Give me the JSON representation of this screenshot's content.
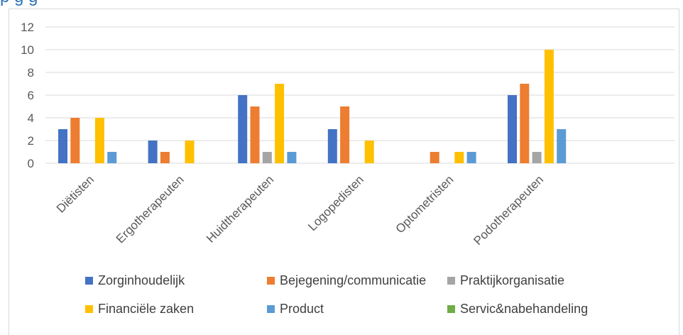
{
  "page_title_fragment": "p            g    g",
  "chart_data": {
    "type": "bar",
    "title": "",
    "xlabel": "",
    "ylabel": "",
    "ylim": [
      0,
      12
    ],
    "yticks": [
      0,
      2,
      4,
      6,
      8,
      10,
      12
    ],
    "grid": true,
    "legend_position": "bottom",
    "categories": [
      "Diëtisten",
      "Ergotherapeuten",
      "Huidtherapeuten",
      "Logopedisten",
      "Optometristen",
      "Podotherapeuten"
    ],
    "series": [
      {
        "name": "Zorginhoudelijk",
        "color": "#4472C4",
        "values": [
          3,
          2,
          6,
          3,
          0,
          6
        ]
      },
      {
        "name": "Bejegening/communicatie",
        "color": "#ED7D31",
        "values": [
          4,
          1,
          5,
          5,
          1,
          7
        ]
      },
      {
        "name": "Praktijkorganisatie",
        "color": "#A5A5A5",
        "values": [
          0,
          0,
          1,
          0,
          0,
          1
        ]
      },
      {
        "name": "Financiële zaken",
        "color": "#FFC000",
        "values": [
          4,
          2,
          7,
          2,
          1,
          10
        ]
      },
      {
        "name": "Product",
        "color": "#5B9BD5",
        "values": [
          1,
          0,
          1,
          0,
          1,
          3
        ]
      },
      {
        "name": "Servic&nabehandeling",
        "color": "#70AD47",
        "values": [
          0,
          0,
          0,
          0,
          0,
          0
        ]
      }
    ]
  }
}
